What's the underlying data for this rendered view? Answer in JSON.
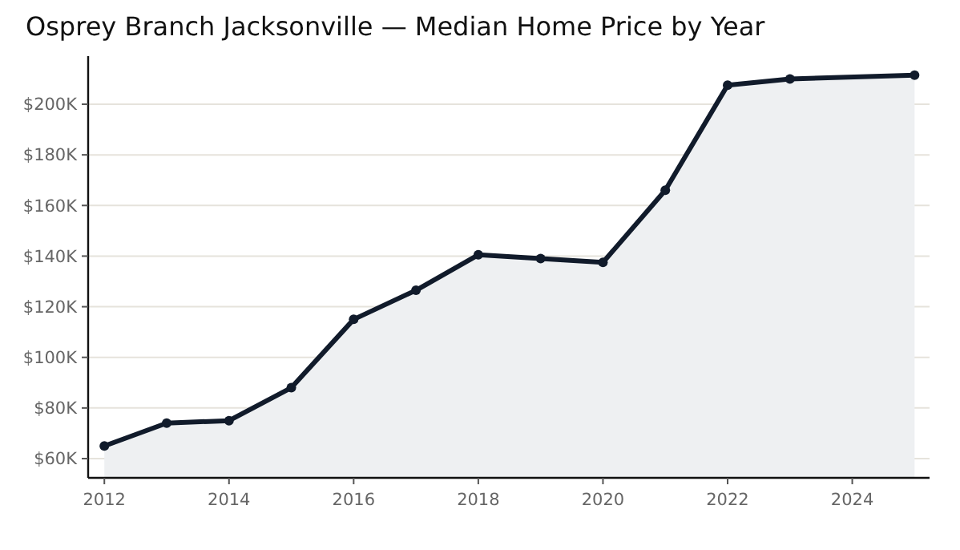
{
  "chart_data": {
    "type": "area",
    "title": "Osprey Branch Jacksonville — Median Home Price by Year",
    "x": [
      2012,
      2013,
      2014,
      2015,
      2016,
      2017,
      2018,
      2019,
      2020,
      2021,
      2022,
      2023,
      2025
    ],
    "series": [
      {
        "color": "#111b2b",
        "values": [
          65000,
          74000,
          75000,
          88000,
          115000,
          126500,
          140500,
          139000,
          137500,
          166000,
          207500,
          210000,
          211500
        ]
      }
    ],
    "xlim": [
      2011.74,
      2025.24
    ],
    "xticks": [
      2012,
      2014,
      2016,
      2018,
      2020,
      2022,
      2024
    ],
    "ylim": [
      52400,
      219000
    ],
    "yticks": [
      {
        "value": 60000,
        "label": "$60K"
      },
      {
        "value": 80000,
        "label": "$80K"
      },
      {
        "value": 100000,
        "label": "$100K"
      },
      {
        "value": 120000,
        "label": "$120K"
      },
      {
        "value": 140000,
        "label": "$140K"
      },
      {
        "value": 160000,
        "label": "$160K"
      },
      {
        "value": 180000,
        "label": "$180K"
      },
      {
        "value": 200000,
        "label": "$200K"
      }
    ],
    "grid": "y",
    "marker": "circle",
    "line_style": "solid"
  }
}
